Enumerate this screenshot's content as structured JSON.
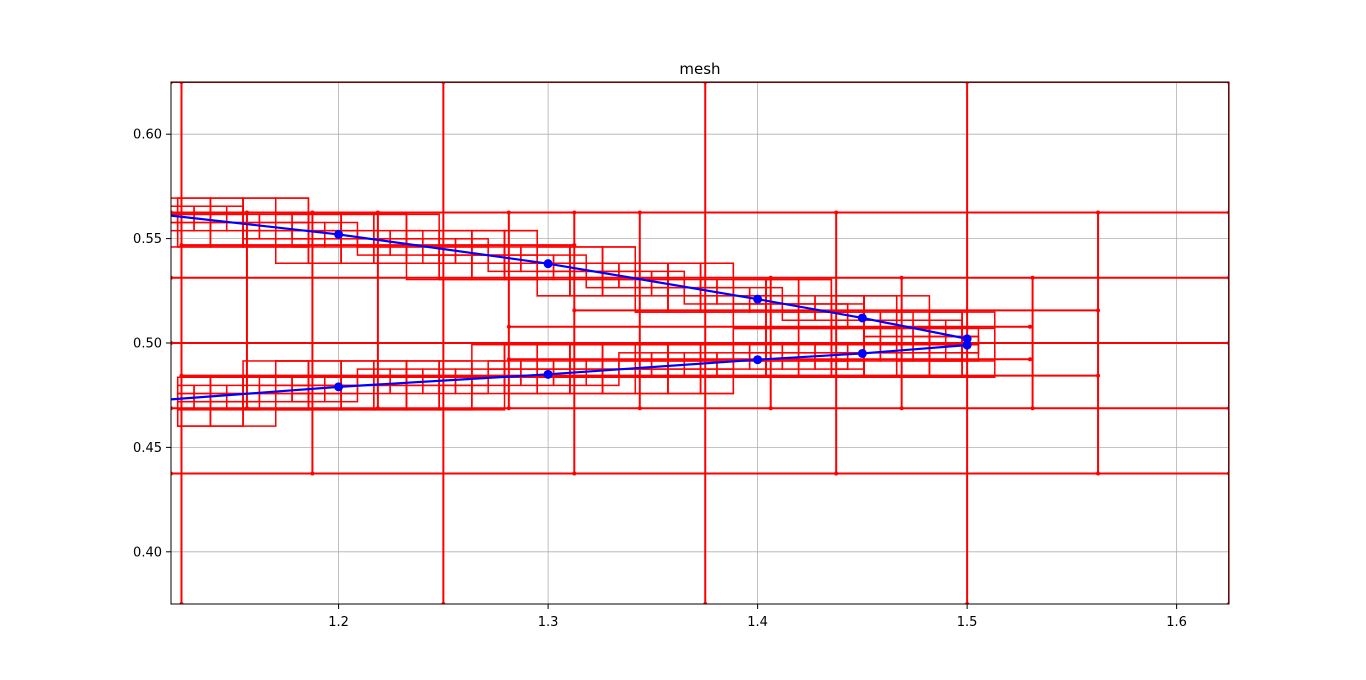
{
  "chart_data": {
    "type": "line",
    "title": "mesh",
    "xlabel": "",
    "ylabel": "",
    "xlim": [
      1.12,
      1.625
    ],
    "ylim": [
      0.375,
      0.625
    ],
    "xticks": [
      1.2,
      1.3,
      1.4,
      1.5,
      1.6
    ],
    "xtick_labels": [
      "1.2",
      "1.3",
      "1.4",
      "1.5",
      "1.6"
    ],
    "yticks": [
      0.4,
      0.45,
      0.5,
      0.55,
      0.6
    ],
    "ytick_labels": [
      "0.40",
      "0.45",
      "0.50",
      "0.55",
      "0.60"
    ],
    "grid": true,
    "colors": {
      "mesh": "#ff0000",
      "polygon": "#0000ff",
      "grid": "#b0b0b0"
    },
    "mesh": {
      "horizontal_lines": [
        {
          "y": 0.625,
          "x": [
            1.12,
            1.625
          ]
        },
        {
          "y": 0.5625,
          "x": [
            1.12,
            1.625
          ]
        },
        {
          "y": 0.53125,
          "x": [
            1.12,
            1.625
          ]
        },
        {
          "y": 0.5,
          "x": [
            1.12,
            1.625
          ]
        },
        {
          "y": 0.46875,
          "x": [
            1.12,
            1.625
          ]
        },
        {
          "y": 0.4375,
          "x": [
            1.12,
            1.625
          ]
        },
        {
          "y": 0.515625,
          "x": [
            1.3125,
            1.5625
          ]
        },
        {
          "y": 0.484375,
          "x": [
            1.125,
            1.5625
          ]
        },
        {
          "y": 0.546875,
          "x": [
            1.125,
            1.3125
          ]
        },
        {
          "y": 0.5078,
          "x": [
            1.2813,
            1.53
          ]
        },
        {
          "y": 0.4922,
          "x": [
            1.2813,
            1.53
          ]
        }
      ],
      "vertical_lines": [
        {
          "x": 1.125,
          "y": [
            0.375,
            0.625
          ]
        },
        {
          "x": 1.25,
          "y": [
            0.375,
            0.625
          ]
        },
        {
          "x": 1.375,
          "y": [
            0.375,
            0.625
          ]
        },
        {
          "x": 1.5,
          "y": [
            0.375,
            0.625
          ]
        },
        {
          "x": 1.625,
          "y": [
            0.375,
            0.625
          ]
        },
        {
          "x": 1.1875,
          "y": [
            0.4375,
            0.5625
          ]
        },
        {
          "x": 1.3125,
          "y": [
            0.4375,
            0.5625
          ]
        },
        {
          "x": 1.4375,
          "y": [
            0.4375,
            0.5625
          ]
        },
        {
          "x": 1.5625,
          "y": [
            0.4375,
            0.5625
          ]
        },
        {
          "x": 1.15625,
          "y": [
            0.46875,
            0.5625
          ]
        },
        {
          "x": 1.21875,
          "y": [
            0.46875,
            0.5625
          ]
        },
        {
          "x": 1.28125,
          "y": [
            0.46875,
            0.5625
          ]
        },
        {
          "x": 1.34375,
          "y": [
            0.46875,
            0.5625
          ]
        },
        {
          "x": 1.40625,
          "y": [
            0.46875,
            0.53125
          ]
        },
        {
          "x": 1.46875,
          "y": [
            0.46875,
            0.53125
          ]
        },
        {
          "x": 1.53125,
          "y": [
            0.46875,
            0.53125
          ]
        }
      ],
      "boundary_band": [
        [
          1.12,
          0.561
        ],
        [
          1.2,
          0.552
        ],
        [
          1.3,
          0.538
        ],
        [
          1.4,
          0.521
        ],
        [
          1.45,
          0.512
        ],
        [
          1.5,
          0.5
        ],
        [
          1.5,
          0.5
        ],
        [
          1.45,
          0.495
        ],
        [
          1.4,
          0.492
        ],
        [
          1.3,
          0.485
        ],
        [
          1.2,
          0.479
        ],
        [
          1.12,
          0.473
        ]
      ]
    },
    "series": [
      {
        "x": [
          1.12,
          1.2,
          1.3,
          1.4,
          1.45,
          1.5,
          1.5,
          1.45,
          1.4,
          1.3,
          1.2,
          1.12
        ],
        "y": [
          0.561,
          0.552,
          0.538,
          0.521,
          0.512,
          0.502,
          0.499,
          0.495,
          0.492,
          0.485,
          0.479,
          0.473
        ],
        "markers_x": [
          1.2,
          1.3,
          1.4,
          1.45,
          1.5,
          1.5,
          1.45,
          1.4,
          1.3,
          1.2
        ],
        "markers_y": [
          0.552,
          0.538,
          0.521,
          0.512,
          0.502,
          0.499,
          0.495,
          0.492,
          0.485,
          0.479
        ]
      }
    ]
  }
}
